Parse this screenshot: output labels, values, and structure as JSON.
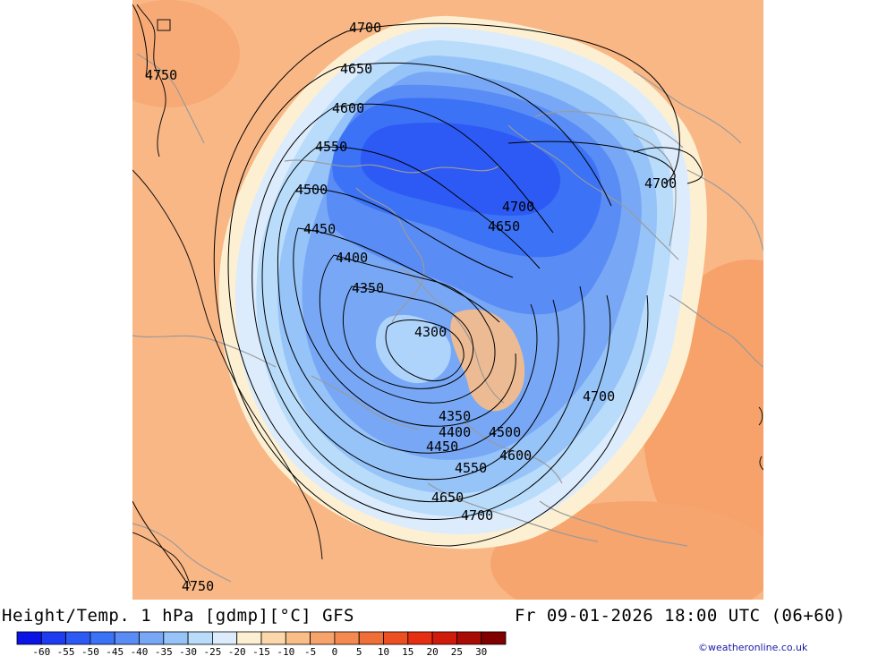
{
  "map": {
    "title": "Height/Temp. 1 hPa [gdmp][°C] GFS",
    "valid_time": "Fr 09-01-2026 18:00 UTC (06+60)",
    "credit": "©weatheronline.co.uk",
    "contour_labels": [
      {
        "id": "c4700-top",
        "text": "4700"
      },
      {
        "id": "c4750-left",
        "text": "4750"
      },
      {
        "id": "c4650-top",
        "text": "4650"
      },
      {
        "id": "c4600-top",
        "text": "4600"
      },
      {
        "id": "c4550-top",
        "text": "4550"
      },
      {
        "id": "c4500-left",
        "text": "4500"
      },
      {
        "id": "c4450-left",
        "text": "4450"
      },
      {
        "id": "c4400-left",
        "text": "4400"
      },
      {
        "id": "c4350-left",
        "text": "4350"
      },
      {
        "id": "c4300-center",
        "text": "4300"
      },
      {
        "id": "c4700-right",
        "text": "4700"
      },
      {
        "id": "c4700-mid",
        "text": "4700"
      },
      {
        "id": "c4650-mid",
        "text": "4650"
      },
      {
        "id": "c4700-east",
        "text": "4700"
      },
      {
        "id": "c4350-bottom",
        "text": "4350"
      },
      {
        "id": "c4400-bottom",
        "text": "4400"
      },
      {
        "id": "c4500-bottom",
        "text": "4500"
      },
      {
        "id": "c4450-bottom",
        "text": "4450"
      },
      {
        "id": "c4600-bottom",
        "text": "4600"
      },
      {
        "id": "c4550-bottom",
        "text": "4550"
      },
      {
        "id": "c4650-bottom",
        "text": "4650"
      },
      {
        "id": "c4700-bottom",
        "text": "4700"
      },
      {
        "id": "c4750-bottom",
        "text": "4750"
      }
    ],
    "legend": {
      "ticks": [
        "-60",
        "-55",
        "-50",
        "-45",
        "-40",
        "-35",
        "-30",
        "-25",
        "-20",
        "-15",
        "-10",
        "-5",
        "0",
        "5",
        "10",
        "15",
        "20",
        "25",
        "30"
      ],
      "colors": [
        "#0a14e6",
        "#1e3cf0",
        "#2d5af5",
        "#3c72f5",
        "#5a8cf5",
        "#78a8f5",
        "#96c3f8",
        "#b9dcfb",
        "#dcecfc",
        "#fdf0d2",
        "#fbd7aa",
        "#f9bd88",
        "#f7a46c",
        "#f48a50",
        "#f06e38",
        "#ec5022",
        "#e62e12",
        "#d01a0a",
        "#a80c04",
        "#800000"
      ]
    }
  }
}
